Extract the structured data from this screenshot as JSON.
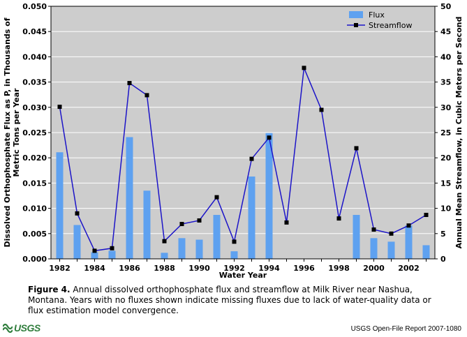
{
  "chart_data": {
    "type": "bar",
    "title": "",
    "xlabel": "Water Year",
    "ylabel_left": "Dissolved Orthophosphate Flux as P, in Thousands of Metric Tons per Year",
    "ylabel_left_lines": [
      "Dissolved Orthophosphate Flux as P, in Thousands of",
      "Metric Tons per Year"
    ],
    "ylabel_right": "Annual Mean Streamflow, in Cubic Meters per Second",
    "x": [
      1982,
      1983,
      1984,
      1985,
      1986,
      1987,
      1988,
      1989,
      1990,
      1991,
      1992,
      1993,
      1994,
      1995,
      1996,
      1997,
      1998,
      1999,
      2000,
      2001,
      2002,
      2003
    ],
    "x_ticks": [
      "1982",
      "1984",
      "1986",
      "1988",
      "1990",
      "1992",
      "1994",
      "1996",
      "1998",
      "2000",
      "2002"
    ],
    "ylim_left": [
      0,
      0.05
    ],
    "y_ticks_left": [
      "0.000",
      "0.005",
      "0.010",
      "0.015",
      "0.020",
      "0.025",
      "0.030",
      "0.035",
      "0.040",
      "0.045",
      "0.050"
    ],
    "ylim_right": [
      0,
      50
    ],
    "y_ticks_right": [
      "0",
      "5",
      "10",
      "15",
      "20",
      "25",
      "30",
      "35",
      "40",
      "45",
      "50"
    ],
    "grid": true,
    "legend_position": "top-right",
    "series": [
      {
        "name": "Flux",
        "kind": "bar",
        "axis": "left",
        "color": "#5ea1f0",
        "values": [
          0.0211,
          0.0067,
          0.0013,
          0.0016,
          0.0241,
          0.0135,
          0.0012,
          0.0041,
          0.0038,
          0.0087,
          0.0015,
          0.0163,
          0.0249,
          null,
          null,
          null,
          null,
          0.0087,
          0.0041,
          0.0034,
          0.0066,
          0.0027
        ]
      },
      {
        "name": "Streamflow",
        "kind": "line",
        "axis": "right",
        "color": "#1c14c8",
        "marker_color": "#000000",
        "values": [
          30.1,
          9.0,
          1.6,
          2.1,
          34.8,
          32.4,
          3.5,
          6.9,
          7.6,
          12.2,
          3.4,
          19.8,
          24.0,
          7.2,
          37.8,
          29.5,
          8.0,
          21.9,
          5.8,
          5.0,
          6.6,
          8.7
        ]
      }
    ]
  },
  "caption": {
    "label": "Figure 4.",
    "text": " Annual dissolved orthophosphate flux and streamflow at Milk River near Nashua, Montana. Years with no fluxes shown indicate missing fluxes due to lack of water-quality data or flux estimation model convergence."
  },
  "footer": {
    "logo_text": "USGS",
    "report_id": "USGS Open-File Report 2007-1080"
  },
  "colors": {
    "plot_background": "#cdcdcd",
    "gridline": "#ffffff",
    "logo_green": "#2f7d3c"
  }
}
